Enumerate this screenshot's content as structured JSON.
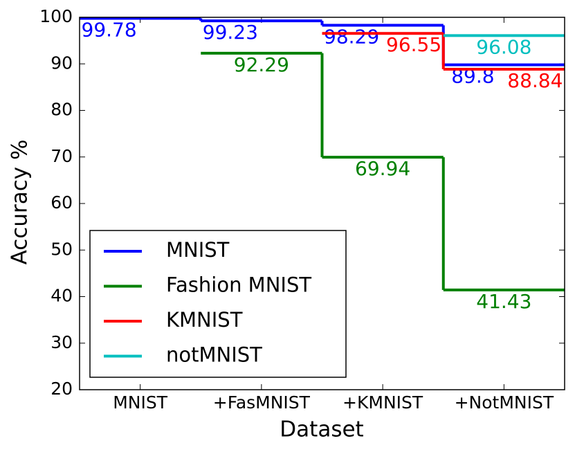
{
  "chart_data": {
    "type": "step",
    "x_label": "Dataset",
    "y_label": "Accuracy %",
    "categories": [
      "MNIST",
      "+FasMNIST",
      "+KMNIST",
      "+NotMNIST"
    ],
    "series": [
      {
        "name": "MNIST",
        "color": "#0000ff",
        "values": [
          99.78,
          99.23,
          98.29,
          89.8
        ]
      },
      {
        "name": "Fashion MNIST",
        "color": "#008000",
        "values": [
          null,
          92.29,
          69.94,
          41.43
        ]
      },
      {
        "name": "KMNIST",
        "color": "#ff0000",
        "values": [
          null,
          null,
          96.55,
          88.84
        ]
      },
      {
        "name": "notMNIST",
        "color": "#00bfbf",
        "values": [
          null,
          null,
          null,
          96.08
        ]
      }
    ],
    "ylim": [
      20,
      100
    ],
    "yticks": [
      20,
      30,
      40,
      50,
      60,
      70,
      80,
      90,
      100
    ],
    "legend": "lower left",
    "data_labels": true
  }
}
